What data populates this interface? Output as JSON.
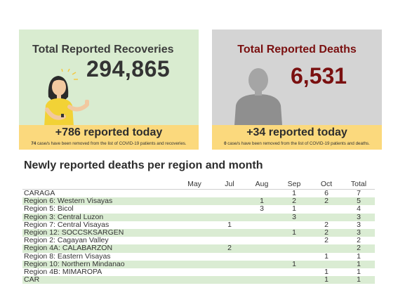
{
  "recoveries": {
    "title": "Total Reported Recoveries",
    "total": "294,865",
    "today": "+786 reported today",
    "note_count": "74",
    "note_text": " case/s have been removed from the list of COVID-19 patients and recoveries."
  },
  "deaths": {
    "title": "Total Reported Deaths",
    "total": "6,531",
    "today": "+34 reported today",
    "note_count": "0",
    "note_text": " case/s have been removed from the list of COVID-19 patients and deaths."
  },
  "table": {
    "title": "Newly reported deaths per region and month",
    "columns": [
      "",
      "May",
      "Jul",
      "Aug",
      "Sep",
      "Oct",
      "Total"
    ],
    "rows": [
      {
        "region": "CARAGA",
        "may": "",
        "jul": "",
        "aug": "",
        "sep": "1",
        "oct": "6",
        "total": "7"
      },
      {
        "region": "Region 6: Western Visayas",
        "may": "",
        "jul": "",
        "aug": "1",
        "sep": "2",
        "oct": "2",
        "total": "5"
      },
      {
        "region": "Region 5: Bicol",
        "may": "",
        "jul": "",
        "aug": "3",
        "sep": "1",
        "oct": "",
        "total": "4"
      },
      {
        "region": "Region 3: Central Luzon",
        "may": "",
        "jul": "",
        "aug": "",
        "sep": "3",
        "oct": "",
        "total": "3"
      },
      {
        "region": "Region 7: Central Visayas",
        "may": "",
        "jul": "1",
        "aug": "",
        "sep": "",
        "oct": "2",
        "total": "3"
      },
      {
        "region": "Region 12: SOCCSKSARGEN",
        "may": "",
        "jul": "",
        "aug": "",
        "sep": "1",
        "oct": "2",
        "total": "3"
      },
      {
        "region": "Region 2: Cagayan Valley",
        "may": "",
        "jul": "",
        "aug": "",
        "sep": "",
        "oct": "2",
        "total": "2"
      },
      {
        "region": "Region 4A: CALABARZON",
        "may": "",
        "jul": "2",
        "aug": "",
        "sep": "",
        "oct": "",
        "total": "2"
      },
      {
        "region": "Region 8: Eastern Visayas",
        "may": "",
        "jul": "",
        "aug": "",
        "sep": "",
        "oct": "1",
        "total": "1"
      },
      {
        "region": "Region 10: Northern Mindanao",
        "may": "",
        "jul": "",
        "aug": "",
        "sep": "1",
        "oct": "",
        "total": "1"
      },
      {
        "region": "Region 4B: MIMAROPA",
        "may": "",
        "jul": "",
        "aug": "",
        "sep": "",
        "oct": "1",
        "total": "1"
      },
      {
        "region": "CAR",
        "may": "",
        "jul": "",
        "aug": "",
        "sep": "",
        "oct": "1",
        "total": "1"
      }
    ]
  },
  "colors": {
    "recoveries_bg": "#d9ecd0",
    "deaths_bg": "#d4d4d4",
    "band": "#fbd97d",
    "deaths_accent": "#7a1010",
    "row_stripe": "#daecd3"
  },
  "icons": {
    "recoveries": "cheering-woman-icon",
    "deaths": "person-silhouette-icon"
  }
}
